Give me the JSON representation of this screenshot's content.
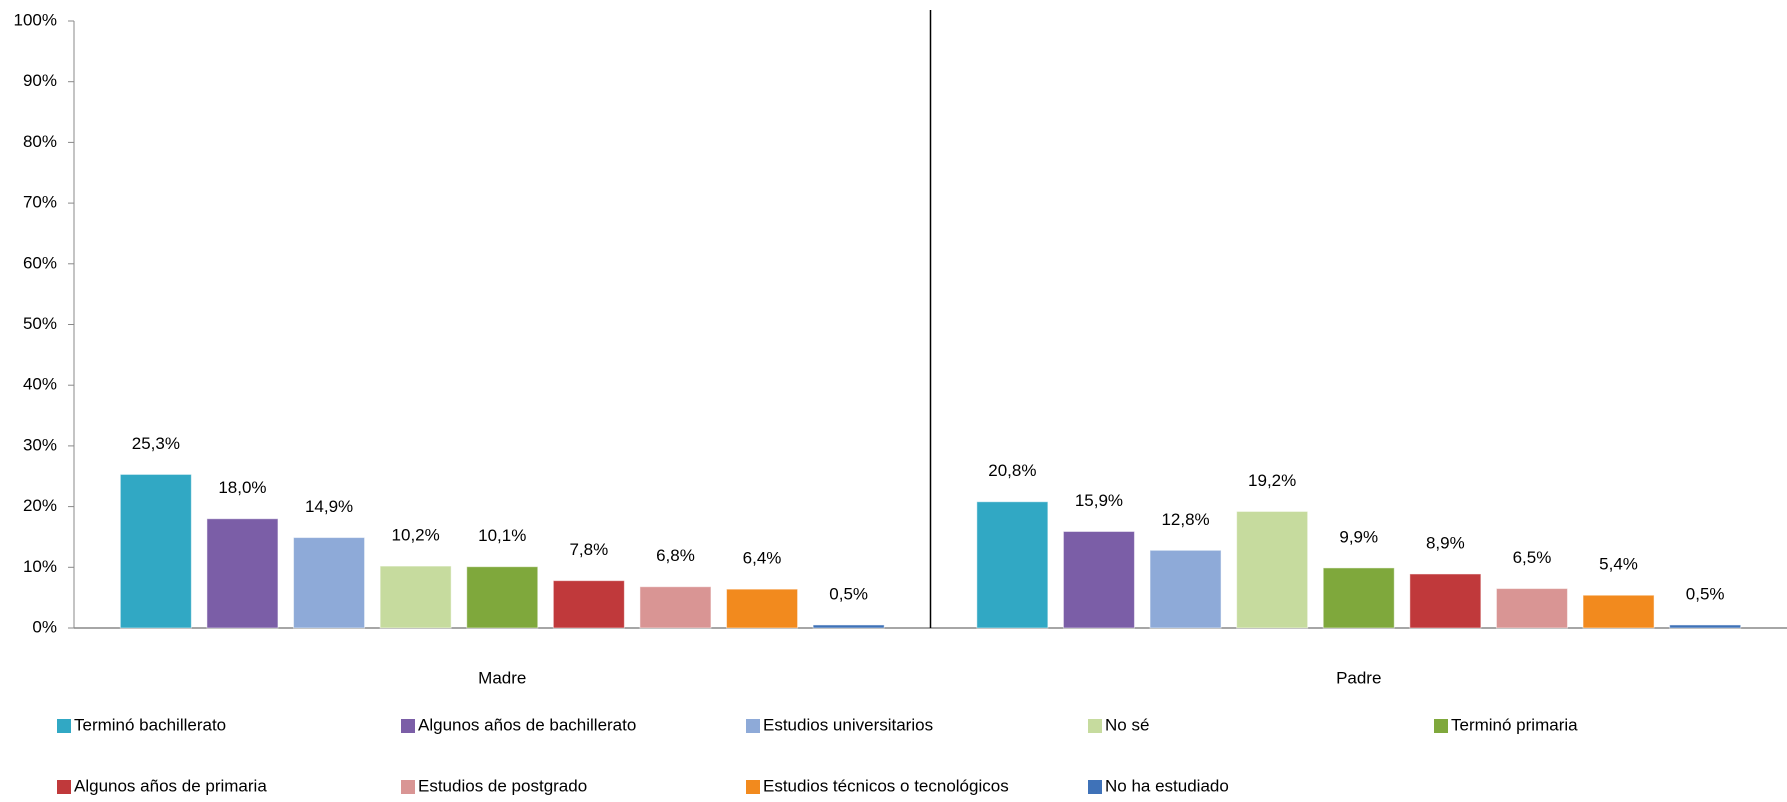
{
  "chart_data": {
    "type": "bar",
    "categories": [
      "Madre",
      "Padre"
    ],
    "series": [
      {
        "name": "Terminó bachillerato",
        "color": "#31a8c4",
        "values": [
          25.3,
          20.8
        ],
        "value_labels": [
          "25,3%",
          "20,8%"
        ]
      },
      {
        "name": "Algunos años de bachillerato",
        "color": "#7b5ea7",
        "values": [
          18.0,
          15.9
        ],
        "value_labels": [
          "18,0%",
          "15,9%"
        ]
      },
      {
        "name": "Estudios universitarios",
        "color": "#8eaad8",
        "values": [
          14.9,
          12.8
        ],
        "value_labels": [
          "14,9%",
          "12,8%"
        ]
      },
      {
        "name": "No sé",
        "color": "#c6db9e",
        "values": [
          10.2,
          19.2
        ],
        "value_labels": [
          "10,2%",
          "19,2%"
        ]
      },
      {
        "name": "Terminó primaria",
        "color": "#7fa83c",
        "values": [
          10.1,
          9.9
        ],
        "value_labels": [
          "10,1%",
          "9,9%"
        ]
      },
      {
        "name": "Algunos años de primaria",
        "color": "#c0393b",
        "values": [
          7.8,
          8.9
        ],
        "value_labels": [
          "7,8%",
          "8,9%"
        ]
      },
      {
        "name": "Estudios de postgrado",
        "color": "#d99594",
        "values": [
          6.8,
          6.5
        ],
        "value_labels": [
          "6,8%",
          "6,5%"
        ]
      },
      {
        "name": "Estudios técnicos o tecnológicos",
        "color": "#f28a1e",
        "values": [
          6.4,
          5.4
        ],
        "value_labels": [
          "6,4%",
          "5,4%"
        ]
      },
      {
        "name": "No ha estudiado",
        "color": "#3f72b8",
        "values": [
          0.5,
          0.5
        ],
        "value_labels": [
          "0,5%",
          "0,5%"
        ]
      }
    ],
    "ylim": [
      0,
      100
    ],
    "yticks": [
      {
        "value": 0,
        "label": "0%"
      },
      {
        "value": 10,
        "label": "10%"
      },
      {
        "value": 20,
        "label": "20%"
      },
      {
        "value": 30,
        "label": "30%"
      },
      {
        "value": 40,
        "label": "40%"
      },
      {
        "value": 50,
        "label": "50%"
      },
      {
        "value": 60,
        "label": "60%"
      },
      {
        "value": 70,
        "label": "70%"
      },
      {
        "value": 80,
        "label": "80%"
      },
      {
        "value": 90,
        "label": "90%"
      },
      {
        "value": 100,
        "label": "100%"
      }
    ],
    "grid": false,
    "legend": "bottom"
  }
}
